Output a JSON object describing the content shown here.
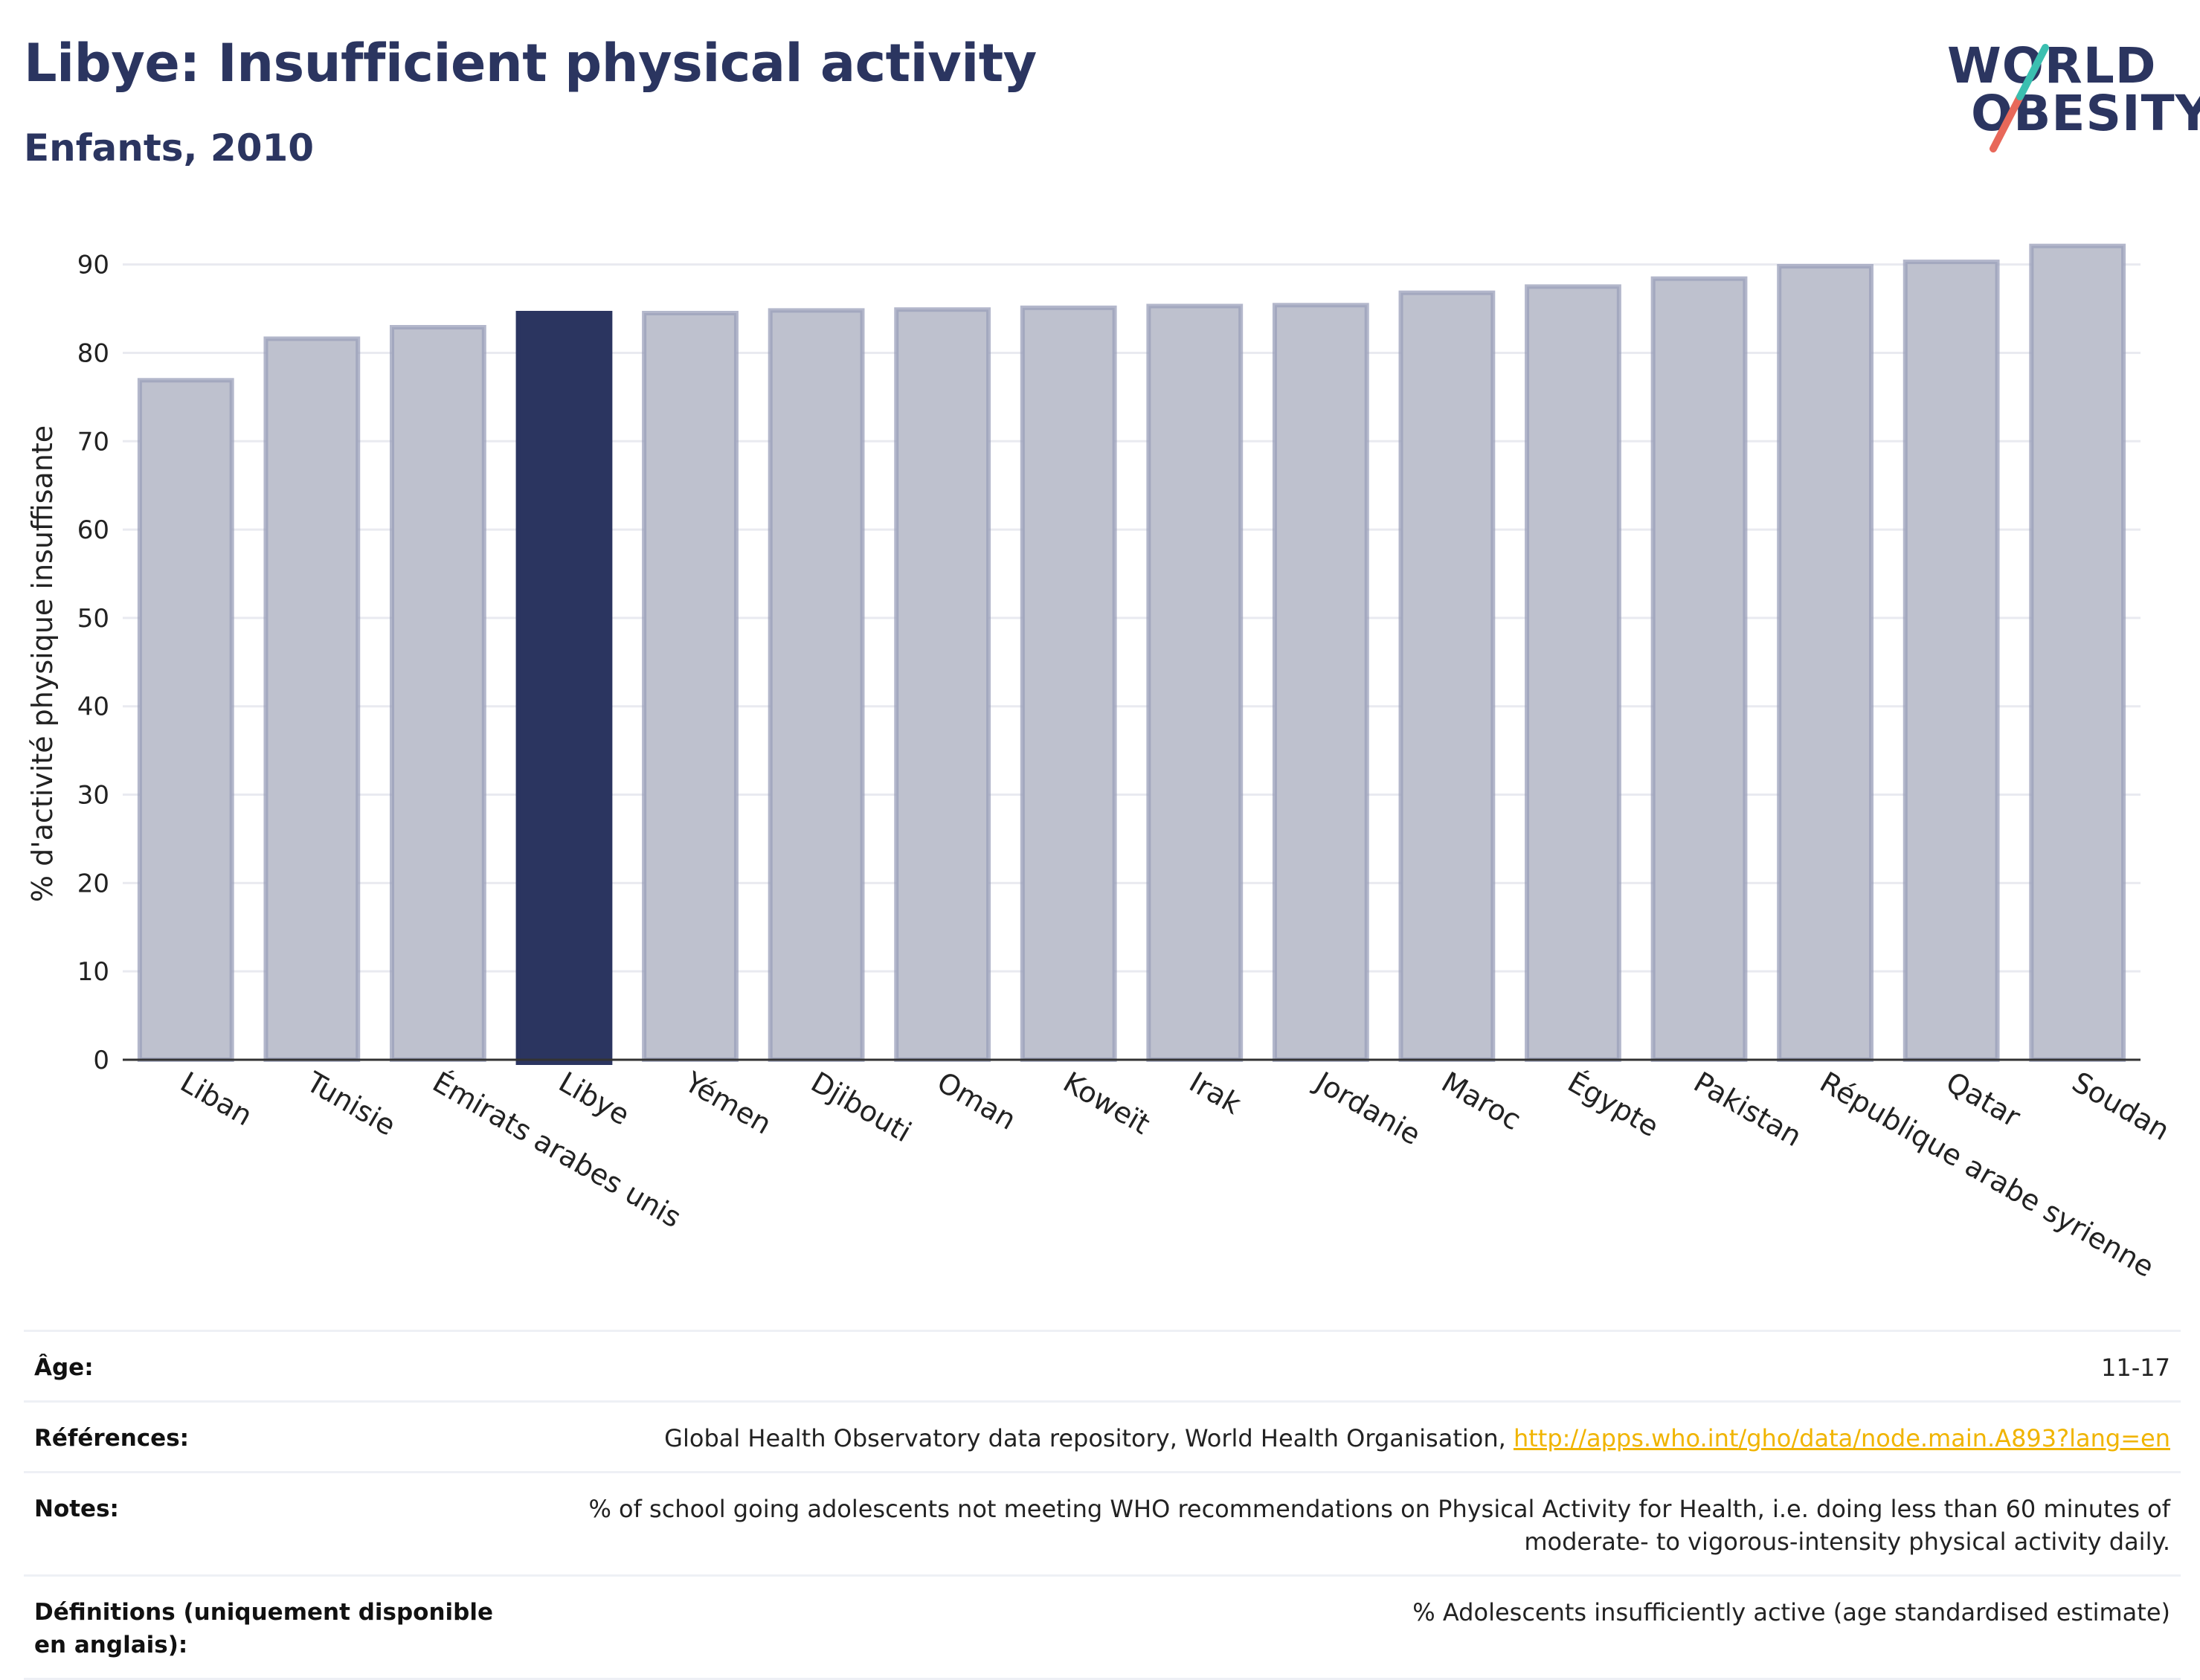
{
  "header": {
    "title": "Libye: Insufficient physical activity",
    "subtitle": "Enfants, 2010"
  },
  "logo": {
    "line1": "WORLD",
    "line2": "OBESITY"
  },
  "chart_data": {
    "type": "bar",
    "title": "Libye: Insufficient physical activity",
    "subtitle": "Enfants, 2010",
    "ylabel": "% d'activité physique insuffisante",
    "xlabel": "",
    "ylim": [
      0,
      93
    ],
    "yticks": [
      0,
      10,
      20,
      30,
      40,
      50,
      60,
      70,
      80,
      90
    ],
    "grid": true,
    "categories": [
      "Liban",
      "Tunisie",
      "Émirats arabes unis",
      "Libye",
      "Yémen",
      "Djibouti",
      "Oman",
      "Koweït",
      "Irak",
      "Jordanie",
      "Maroc",
      "Égypte",
      "Pakistan",
      "République arabe syrienne",
      "Qatar",
      "Soudan"
    ],
    "values": [
      76.9,
      81.6,
      82.9,
      84.5,
      84.5,
      84.8,
      84.9,
      85.1,
      85.3,
      85.4,
      86.8,
      87.5,
      88.4,
      89.8,
      90.3,
      92.1
    ],
    "highlight": "Libye",
    "colors": {
      "highlight": "#2b3560",
      "bar": "#bec1ce",
      "bar_edge": "#9a9fb9"
    }
  },
  "meta": {
    "age_label": "Âge:",
    "age_value": "11-17",
    "refs_label": "Références:",
    "refs_value": "Global Health Observatory data repository, World Health Organisation, ",
    "refs_link": "http://apps.who.int/gho/data/node.main.A893?lang=en",
    "notes_label": "Notes:",
    "notes_value": "% of school going adolescents not meeting WHO recommendations on Physical Activity for Health, i.e. doing less than 60 minutes of moderate- to vigorous-intensity physical activity daily.",
    "defs_label": "Définitions (uniquement disponible en anglais):",
    "defs_value": "% Adolescents insufficiently active (age standardised estimate)"
  }
}
